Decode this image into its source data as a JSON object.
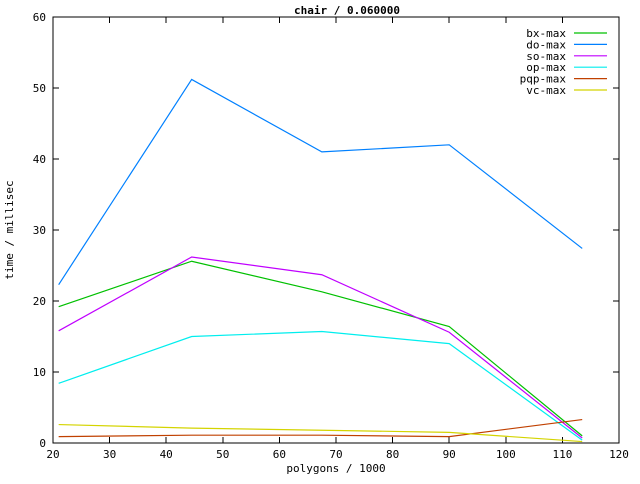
{
  "chart_data": {
    "type": "line",
    "title": "chair / 0.060000",
    "xlabel": "polygons / 1000",
    "ylabel": "time / millisec",
    "xlim": [
      20,
      120
    ],
    "ylim": [
      0,
      60
    ],
    "x_ticks": [
      20,
      30,
      40,
      50,
      60,
      70,
      80,
      90,
      100,
      110,
      120
    ],
    "y_ticks": [
      0,
      10,
      20,
      30,
      40,
      50,
      60
    ],
    "grid": false,
    "legend_position": "top-right-inside",
    "background_color": "#ffffff",
    "axis_color": "#000000",
    "x": [
      21,
      44.5,
      67.5,
      90,
      113.5
    ],
    "series": [
      {
        "name": "bx-max",
        "color": "#00c000",
        "values": [
          19.2,
          25.6,
          21.3,
          16.4,
          1.0
        ]
      },
      {
        "name": "do-max",
        "color": "#0080ff",
        "values": [
          22.3,
          51.2,
          41.0,
          42.0,
          27.4
        ]
      },
      {
        "name": "so-max",
        "color": "#c000ff",
        "values": [
          15.8,
          26.2,
          23.7,
          15.6,
          0.7
        ]
      },
      {
        "name": "op-max",
        "color": "#00eeee",
        "values": [
          8.4,
          15.0,
          15.7,
          14.0,
          0.4
        ]
      },
      {
        "name": "pqp-max",
        "color": "#c04000",
        "values": [
          0.9,
          1.1,
          1.1,
          0.9,
          3.3
        ]
      },
      {
        "name": "vc-max",
        "color": "#d4d400",
        "values": [
          2.6,
          2.1,
          1.8,
          1.5,
          0.2
        ]
      }
    ]
  }
}
